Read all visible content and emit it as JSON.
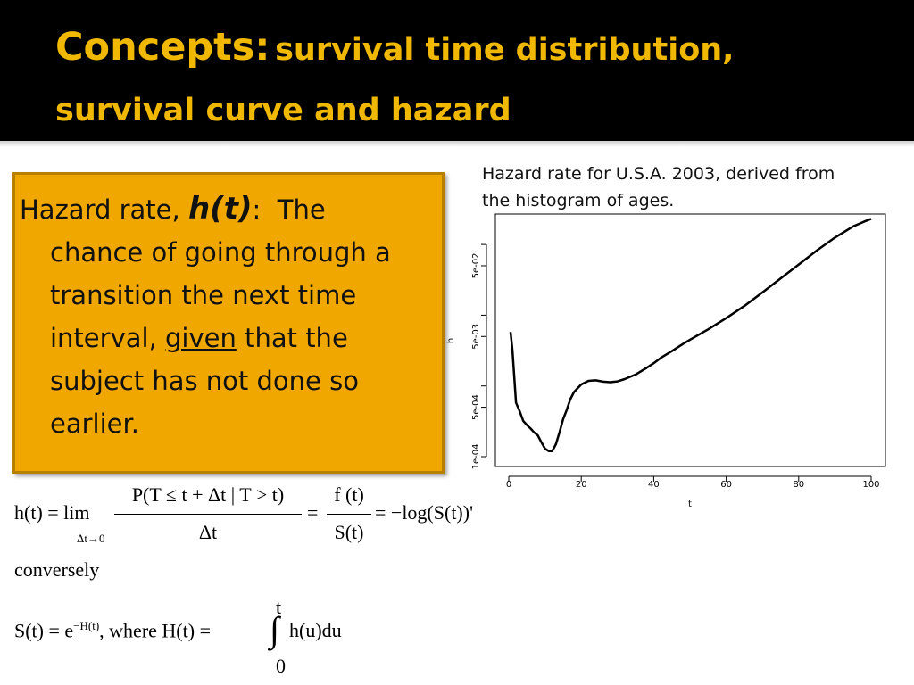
{
  "title": {
    "prefix": "Concepts:",
    "line1_rest": "survival time distribution,",
    "line2": "survival curve and hazard"
  },
  "definition": {
    "lead": "Hazard rate,",
    "symbol": "h(t)",
    "colon": ":",
    "line1_tail": "The",
    "line2": "chance of going through a",
    "line3": "transition the next time",
    "line4_pre": "interval,",
    "line4_underlined": "given",
    "line4_post": "that the",
    "line5": "subject has not done so",
    "line6": "earlier."
  },
  "caption": {
    "line1": "Hazard rate for U.S.A. 2003, derived from",
    "line2": "the histogram of ages."
  },
  "formula1": {
    "lhs": "h(t) = lim",
    "lim_sub": "Δt→0",
    "frac1_num": "P(T ≤ t + Δt | T > t)",
    "frac1_den": "Δt",
    "eq2": "=",
    "frac2_num": "f (t)",
    "frac2_den": "S(t)",
    "rhs": "= −log(S(t))'"
  },
  "conversely": "conversely",
  "formula2": {
    "lhs": "S(t) = e",
    "exp": "−H(t)",
    "where": ", where  H(t) =",
    "int_upper": "t",
    "int_lower": "0",
    "integrand": "h(u)du"
  },
  "chart_data": {
    "type": "line",
    "xlabel": "t",
    "ylabel": "h",
    "xlim": [
      0,
      100
    ],
    "ylim": [
      0.0001,
      0.19
    ],
    "y_scale": "log",
    "x_ticks": [
      0,
      20,
      40,
      60,
      80,
      100
    ],
    "x_tick_labels": [
      "0",
      "20",
      "40",
      "60",
      "80",
      "100"
    ],
    "y_ticks": [
      0.0001,
      0.0005,
      0.005,
      0.05
    ],
    "y_tick_labels": [
      "1e-04",
      "5e-04",
      "5e-03",
      "5e-02"
    ],
    "y_minor_ticks": [
      0.001,
      0.01,
      0.1
    ],
    "series": [
      {
        "color": "#000000",
        "x": [
          0.5,
          1,
          2,
          3,
          4,
          5,
          6,
          7,
          8,
          9,
          10,
          11,
          12,
          13,
          14,
          15,
          16,
          17,
          18,
          20,
          22,
          24,
          26,
          28,
          30,
          32,
          35,
          38,
          40,
          42,
          45,
          48,
          50,
          55,
          60,
          65,
          70,
          75,
          80,
          85,
          90,
          95,
          98,
          100
        ],
        "y": [
          0.0058,
          0.0032,
          0.00058,
          0.00044,
          0.00032,
          0.00028,
          0.00025,
          0.00022,
          0.0002,
          0.00016,
          0.00013,
          0.00012,
          0.00012,
          0.00015,
          0.00022,
          0.00034,
          0.00046,
          0.00065,
          0.00082,
          0.00105,
          0.00118,
          0.0012,
          0.00115,
          0.00113,
          0.00116,
          0.00125,
          0.00145,
          0.0018,
          0.0021,
          0.0025,
          0.0031,
          0.0039,
          0.0045,
          0.0063,
          0.0091,
          0.0135,
          0.021,
          0.033,
          0.052,
          0.082,
          0.125,
          0.18,
          0.21,
          0.23
        ]
      }
    ]
  }
}
